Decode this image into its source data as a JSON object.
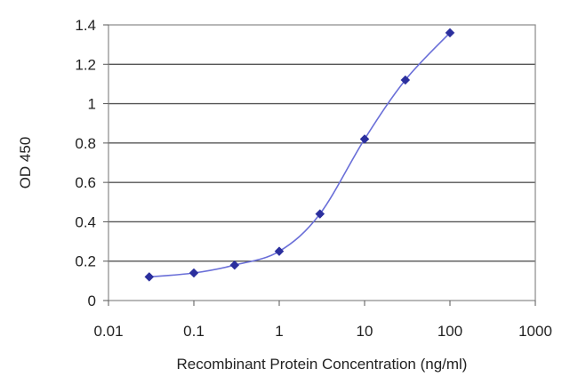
{
  "chart_data": {
    "type": "line",
    "title": "",
    "xlabel": "Recombinant Protein Concentration (ng/ml)",
    "ylabel": "OD 450",
    "x_scale": "log",
    "xlim": [
      0.01,
      1000
    ],
    "ylim": [
      0,
      1.4
    ],
    "x_ticks": [
      0.01,
      0.1,
      1,
      10,
      100,
      1000
    ],
    "x_tick_labels": [
      "0.01",
      "0.1",
      "1",
      "10",
      "100",
      "1000"
    ],
    "y_ticks": [
      0,
      0.2,
      0.4,
      0.6,
      0.8,
      1,
      1.2,
      1.4
    ],
    "y_tick_labels": [
      "0",
      "0.2",
      "0.4",
      "0.6",
      "0.8",
      "1",
      "1.2",
      "1.4"
    ],
    "grid": "horizontal",
    "legend": "none",
    "series": [
      {
        "x": [
          0.03,
          0.1,
          0.3,
          1,
          3,
          10,
          30,
          100
        ],
        "y": [
          0.12,
          0.14,
          0.18,
          0.25,
          0.44,
          0.82,
          1.12,
          1.36
        ],
        "color": "#2b2f9e",
        "line_color": "#6a6fd8"
      }
    ]
  }
}
